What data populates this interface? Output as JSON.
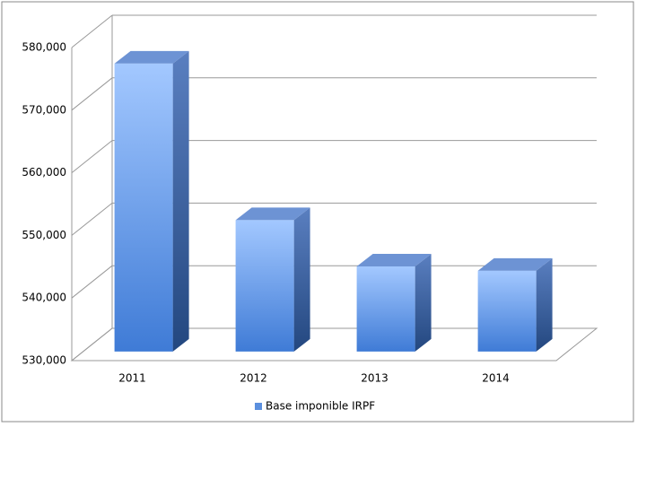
{
  "chart_data": {
    "type": "bar3d",
    "categories": [
      "2011",
      "2012",
      "2013",
      "2014"
    ],
    "series": [
      {
        "name": "Base imponible IRPF",
        "color": "#5b8fde",
        "values": [
          576000,
          551000,
          543600,
          542900
        ]
      }
    ],
    "ylim": [
      530000,
      580000
    ],
    "yticks": [
      {
        "value": 530000,
        "label": "530,000"
      },
      {
        "value": 540000,
        "label": "540,000"
      },
      {
        "value": 550000,
        "label": "550,000"
      },
      {
        "value": 560000,
        "label": "560,000"
      },
      {
        "value": 570000,
        "label": "570,000"
      },
      {
        "value": 580000,
        "label": "580,000"
      }
    ],
    "grid": true,
    "legend": "bottom"
  }
}
